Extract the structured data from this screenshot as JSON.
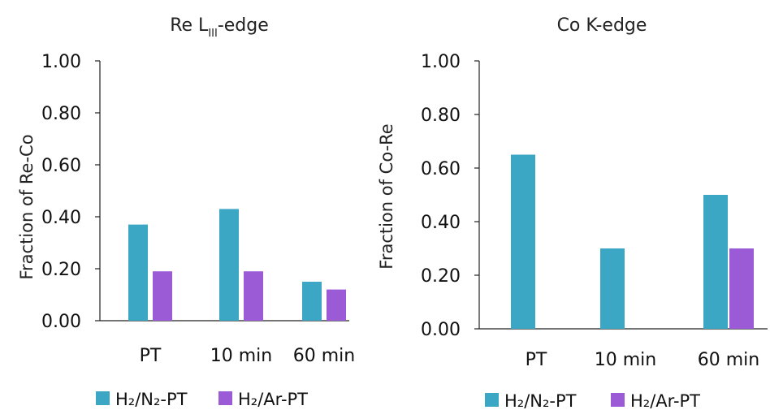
{
  "chart_data": [
    {
      "type": "bar",
      "title": {
        "main": "Re L",
        "sub": "III",
        "suffix": "-edge"
      },
      "ylabel": "Fraction of Re-Co",
      "xlabel": "",
      "categories": [
        "PT",
        "10 min",
        "60 min"
      ],
      "series": [
        {
          "name": "H₂/N₂-PT",
          "color": "#3CA7C4",
          "values": [
            0.37,
            0.43,
            0.15
          ]
        },
        {
          "name": "H₂/Ar-PT",
          "color": "#9C5BD6",
          "values": [
            0.19,
            0.19,
            0.12
          ]
        }
      ],
      "ylim": [
        0,
        1.0
      ],
      "yticks": [
        "0.00",
        "0.20",
        "0.40",
        "0.60",
        "0.80",
        "1.00"
      ],
      "grid": false,
      "legend": "bottom"
    },
    {
      "type": "bar",
      "title": {
        "main": "Co K-edge",
        "sub": "",
        "suffix": ""
      },
      "ylabel": "Fraction of Co-Re",
      "xlabel": "",
      "categories": [
        "PT",
        "10 min",
        "60 min"
      ],
      "series": [
        {
          "name": "H₂/N₂-PT",
          "color": "#3CA7C4",
          "values": [
            0.65,
            0.3,
            0.5
          ]
        },
        {
          "name": "H₂/Ar-PT",
          "color": "#9C5BD6",
          "values": [
            0,
            0,
            0.3
          ]
        }
      ],
      "ylim": [
        0,
        1.0
      ],
      "yticks": [
        "0.00",
        "0.20",
        "0.40",
        "0.60",
        "0.80",
        "1.00"
      ],
      "grid": false,
      "legend": "bottom"
    }
  ]
}
